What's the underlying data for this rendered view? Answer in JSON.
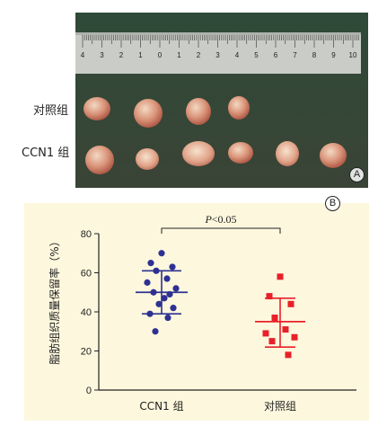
{
  "panel_a": {
    "row_labels": {
      "control": "对照组",
      "ccn1": "CCN1 组"
    },
    "ruler_numbers": [
      "4",
      "3",
      "2",
      "1",
      "0",
      "1",
      "2",
      "3",
      "4",
      "5",
      "6",
      "7",
      "8",
      "9",
      "10"
    ],
    "panel_letter": "A"
  },
  "panel_b": {
    "panel_letter": "B"
  },
  "chart_data": {
    "type": "scatter",
    "ylabel": "脂肪组织质量保留率（%）",
    "ylim": [
      0,
      80
    ],
    "yticks": [
      0,
      20,
      40,
      60,
      80
    ],
    "categories": [
      "CCN1 组",
      "对照组"
    ],
    "significance": "P<0.05",
    "series": [
      {
        "category": "CCN1 组",
        "color": "#2e3192",
        "marker": "circle",
        "values": [
          70,
          65,
          63,
          61,
          57,
          55,
          52,
          50,
          49,
          47,
          44,
          42,
          39,
          37,
          30
        ],
        "mean": 50,
        "sd_upper": 61,
        "sd_lower": 39
      },
      {
        "category": "对照组",
        "color": "#e8202a",
        "marker": "square",
        "values": [
          58,
          48,
          44,
          37,
          31,
          29,
          27,
          25,
          18
        ],
        "mean": 35,
        "sd_upper": 47,
        "sd_lower": 22
      }
    ]
  }
}
